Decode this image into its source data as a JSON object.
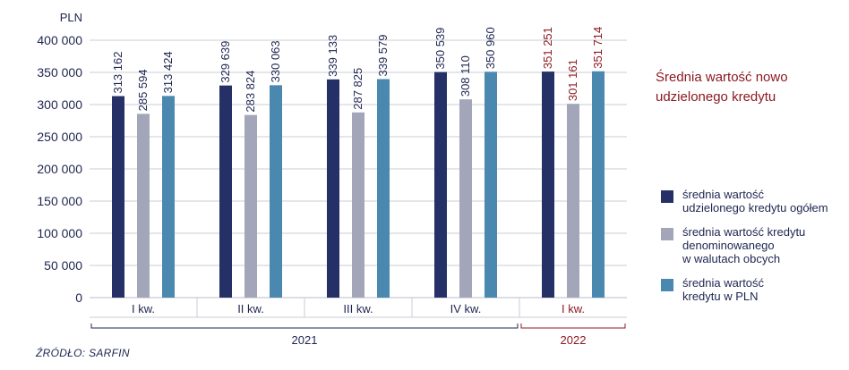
{
  "chart_data": {
    "type": "bar",
    "ylabel": "PLN",
    "ylim": [
      0,
      400000
    ],
    "yticks": [
      0,
      50000,
      100000,
      150000,
      200000,
      250000,
      300000,
      350000,
      400000
    ],
    "ytick_labels": [
      "0",
      "50 000",
      "100 000",
      "150 000",
      "200 000",
      "250 000",
      "300 000",
      "350 000",
      "400 000"
    ],
    "categories": [
      "I kw.",
      "II kw.",
      "III kw.",
      "IV kw.",
      "I kw."
    ],
    "years": [
      {
        "label": "2021",
        "from": 0,
        "to": 3,
        "color": "#1e2550"
      },
      {
        "label": "2022",
        "from": 4,
        "to": 4,
        "color": "#8b1a22"
      }
    ],
    "series": [
      {
        "name": "średnia wartość udzielonego kredytu ogółem",
        "color": "#253066",
        "values": [
          313162,
          329639,
          339133,
          350539,
          351251
        ],
        "labels": [
          "313 162",
          "329 639",
          "339 133",
          "350 539",
          "351 251"
        ]
      },
      {
        "name": "średnia wartość kredytu denominowanego w walutach obcych",
        "color": "#a3a6b8",
        "values": [
          285594,
          283824,
          287825,
          308110,
          301161
        ],
        "labels": [
          "285 594",
          "283 824",
          "287 825",
          "308 110",
          "301 161"
        ]
      },
      {
        "name": "średnia wartość kredytu w PLN",
        "color": "#4a88b0",
        "values": [
          313424,
          330063,
          339579,
          350960,
          351714
        ],
        "labels": [
          "313 424",
          "330 063",
          "339 579",
          "350 960",
          "351 714"
        ]
      }
    ],
    "label_colors": [
      "#1e2550",
      "#1e2550",
      "#1e2550",
      "#1e2550",
      "#8b1a22"
    ],
    "legend_position": "right",
    "grid": true
  },
  "side_title": "Średnia wartość nowo udzielonego kredytu",
  "legend_lines": [
    [
      "średnia wartość",
      "udzielonego kredytu ogółem"
    ],
    [
      "średnia wartość kredytu",
      "denominowanego",
      "w walutach obcych"
    ],
    [
      "średnia wartość",
      "kredytu w PLN"
    ]
  ],
  "source": "ŹRÓDŁO: SARFIN"
}
